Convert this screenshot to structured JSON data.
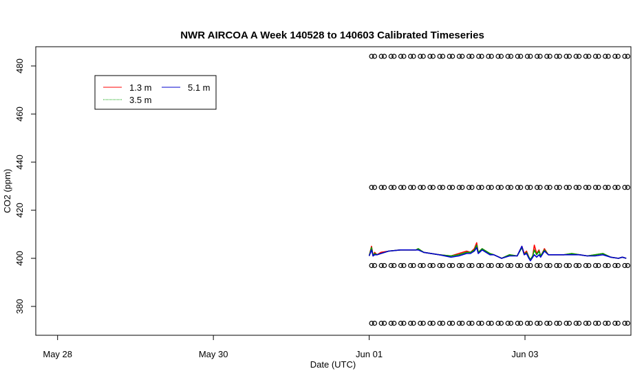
{
  "chart_data": {
    "type": "line",
    "title": "NWR AIRCOA A  Week 140528 to 140603  Calibrated Timeseries",
    "xlabel": "Date (UTC)",
    "ylabel": "CO2 (ppm)",
    "x_ticks": [
      {
        "day": 0,
        "label": "May 28"
      },
      {
        "day": 2,
        "label": "May 30"
      },
      {
        "day": 4,
        "label": "Jun 01"
      },
      {
        "day": 6,
        "label": "Jun 03"
      }
    ],
    "y_ticks": [
      380,
      400,
      420,
      440,
      460,
      480
    ],
    "xlim": [
      -0.28,
      7.36
    ],
    "ylim": [
      368,
      488
    ],
    "grid": false,
    "legend": {
      "position": "top-left"
    },
    "series": [
      {
        "name": "1.3 m",
        "color": "#ff0000",
        "x": [
          4.0,
          4.03,
          4.05,
          4.07,
          4.1,
          4.15,
          4.25,
          4.4,
          4.6,
          4.63,
          4.7,
          4.9,
          5.05,
          5.15,
          5.25,
          5.3,
          5.35,
          5.38,
          5.4,
          5.45,
          5.5,
          5.55,
          5.6,
          5.7,
          5.8,
          5.9,
          5.96,
          5.99,
          6.02,
          6.05,
          6.07,
          6.1,
          6.12,
          6.15,
          6.18,
          6.2,
          6.22,
          6.25,
          6.3,
          6.4,
          6.5,
          6.6,
          6.7,
          6.8,
          6.9,
          7.0,
          7.1,
          7.2,
          7.25,
          7.3
        ],
        "y": [
          401,
          405,
          401,
          402.5,
          401.5,
          402.5,
          403,
          403.5,
          403.5,
          404,
          402.5,
          401.5,
          401,
          402,
          403,
          402.5,
          404,
          406.5,
          402.5,
          404,
          403,
          402,
          401.5,
          400,
          401.5,
          401,
          405,
          402,
          403,
          400.5,
          399.5,
          401,
          405.5,
          402,
          403.5,
          401,
          402,
          404,
          401.5,
          401.5,
          401.5,
          402,
          401.5,
          401,
          401.5,
          402,
          400.5,
          400,
          400.5,
          400
        ]
      },
      {
        "name": "3.5 m",
        "color": "#00a000",
        "x": [
          4.0,
          4.03,
          4.05,
          4.07,
          4.1,
          4.15,
          4.25,
          4.4,
          4.6,
          4.63,
          4.7,
          4.9,
          5.05,
          5.15,
          5.25,
          5.3,
          5.35,
          5.38,
          5.4,
          5.45,
          5.5,
          5.55,
          5.6,
          5.7,
          5.8,
          5.9,
          5.96,
          5.99,
          6.02,
          6.05,
          6.07,
          6.1,
          6.12,
          6.15,
          6.18,
          6.2,
          6.22,
          6.25,
          6.3,
          6.4,
          6.5,
          6.6,
          6.7,
          6.8,
          6.9,
          7.0,
          7.1,
          7.2,
          7.25,
          7.3
        ],
        "y": [
          401,
          404.5,
          401,
          402,
          401.5,
          402,
          403,
          403.5,
          403.5,
          404,
          402.5,
          401.5,
          401,
          401.5,
          402.5,
          402.5,
          403.5,
          405.5,
          402.5,
          404,
          403,
          402,
          401.5,
          400,
          401.5,
          401,
          404.5,
          401.5,
          402.5,
          400.5,
          399.5,
          401,
          403.5,
          401.5,
          403,
          401,
          402,
          403.5,
          401.5,
          401.5,
          401.5,
          402,
          401.5,
          401,
          401.5,
          402,
          400.5,
          400,
          400.5,
          400
        ]
      },
      {
        "name": "5.1 m",
        "color": "#0000cc",
        "x": [
          4.0,
          4.03,
          4.05,
          4.07,
          4.1,
          4.15,
          4.25,
          4.4,
          4.6,
          4.63,
          4.7,
          4.9,
          5.05,
          5.15,
          5.25,
          5.3,
          5.35,
          5.38,
          5.4,
          5.45,
          5.5,
          5.55,
          5.6,
          5.7,
          5.8,
          5.9,
          5.96,
          5.99,
          6.02,
          6.05,
          6.07,
          6.1,
          6.12,
          6.15,
          6.18,
          6.2,
          6.22,
          6.25,
          6.3,
          6.4,
          6.5,
          6.6,
          6.7,
          6.8,
          6.9,
          7.0,
          7.1,
          7.2,
          7.25,
          7.3
        ],
        "y": [
          401,
          403.5,
          401,
          401.5,
          401.5,
          402,
          403,
          403.5,
          403.5,
          403.5,
          402.5,
          401.5,
          400.5,
          401,
          402,
          402,
          403,
          404.5,
          402,
          403.5,
          402.5,
          401.5,
          401.5,
          400,
          401,
          401,
          405,
          401.5,
          402,
          400,
          399,
          400.5,
          401.5,
          400.5,
          401.5,
          400.5,
          401.5,
          403,
          401.5,
          401.5,
          401.5,
          401.5,
          401.5,
          401,
          401,
          401.5,
          400.5,
          400,
          400.5,
          400
        ]
      }
    ],
    "reference_points": {
      "marker": "open-circle",
      "color": "#000000",
      "x_start": 4.05,
      "x_end": 7.3,
      "count": 27,
      "levels": [
        484,
        429.5,
        397,
        373
      ]
    }
  }
}
